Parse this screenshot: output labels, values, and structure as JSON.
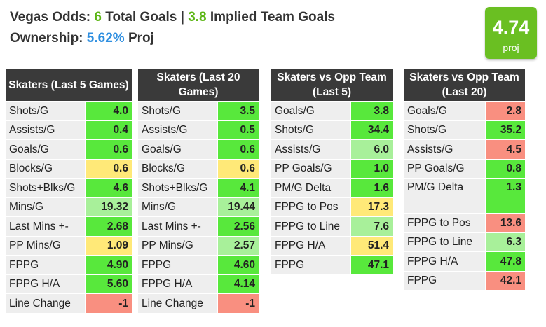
{
  "header": {
    "odds_label": "Vegas Odds:",
    "total_goals_value": "6",
    "total_goals_label": "Total Goals",
    "separator": "|",
    "implied_value": "3.8",
    "implied_label": "Implied Team Goals",
    "ownership_label": "Ownership:",
    "ownership_value": "5.62%",
    "ownership_suffix": "Proj"
  },
  "projection": {
    "value": "4.74",
    "label": "proj",
    "color": "#6abf22"
  },
  "colors": {
    "green": "#58e83c",
    "light_green": "#a8f09a",
    "yellow": "#ffe978",
    "red": "#f98f80",
    "header": "#3a3a3a"
  },
  "tables": [
    {
      "title": "Skaters (Last 5 Games)",
      "rows": [
        {
          "label": "Shots/G",
          "value": "4.0",
          "color": "green"
        },
        {
          "label": "Assists/G",
          "value": "0.4",
          "color": "green"
        },
        {
          "label": "Goals/G",
          "value": "0.6",
          "color": "green"
        },
        {
          "label": "Blocks/G",
          "value": "0.6",
          "color": "yellow"
        },
        {
          "label": "Shots+Blks/G",
          "value": "4.6",
          "color": "green"
        },
        {
          "label": "Mins/G",
          "value": "19.32",
          "color": "light_green"
        },
        {
          "label": "Last Mins +-",
          "value": "2.68",
          "color": "green"
        },
        {
          "label": "PP Mins/G",
          "value": "1.09",
          "color": "yellow"
        },
        {
          "label": "FPPG",
          "value": "4.90",
          "color": "green"
        },
        {
          "label": "FPPG H/A",
          "value": "5.60",
          "color": "green"
        },
        {
          "label": "Line Change",
          "value": "-1",
          "color": "red"
        }
      ]
    },
    {
      "title": "Skaters (Last 20 Games)",
      "rows": [
        {
          "label": "Shots/G",
          "value": "3.5",
          "color": "green"
        },
        {
          "label": "Assists/G",
          "value": "0.5",
          "color": "green"
        },
        {
          "label": "Goals/G",
          "value": "0.6",
          "color": "green"
        },
        {
          "label": "Blocks/G",
          "value": "0.6",
          "color": "yellow"
        },
        {
          "label": "Shots+Blks/G",
          "value": "4.1",
          "color": "green"
        },
        {
          "label": "Mins/G",
          "value": "19.44",
          "color": "light_green"
        },
        {
          "label": "Last Mins +-",
          "value": "2.56",
          "color": "green"
        },
        {
          "label": "PP Mins/G",
          "value": "2.57",
          "color": "light_green"
        },
        {
          "label": "FPPG",
          "value": "4.60",
          "color": "green"
        },
        {
          "label": "FPPG H/A",
          "value": "4.14",
          "color": "green"
        },
        {
          "label": "Line Change",
          "value": "-1",
          "color": "red"
        }
      ]
    },
    {
      "title": "Skaters vs Opp Team (Last 5)",
      "rows": [
        {
          "label": "Goals/G",
          "value": "3.8",
          "color": "green"
        },
        {
          "label": "Shots/G",
          "value": "34.4",
          "color": "green"
        },
        {
          "label": "Assists/G",
          "value": "6.0",
          "color": "light_green"
        },
        {
          "label": "PP Goals/G",
          "value": "1.0",
          "color": "green"
        },
        {
          "label": "PM/G Delta",
          "value": "1.6",
          "color": "green"
        },
        {
          "label": "FPPG to Pos",
          "value": "17.3",
          "color": "yellow"
        },
        {
          "label": "FPPG to Line",
          "value": "7.6",
          "color": "light_green"
        },
        {
          "label": "FPPG H/A",
          "value": "51.4",
          "color": "yellow"
        },
        {
          "label": "FPPG",
          "value": "47.1",
          "color": "green"
        }
      ]
    },
    {
      "title": "Skaters vs Opp Team (Last 20)",
      "rows": [
        {
          "label": "Goals/G",
          "value": "2.8",
          "color": "red"
        },
        {
          "label": "Shots/G",
          "value": "35.2",
          "color": "green"
        },
        {
          "label": "Assists/G",
          "value": "4.5",
          "color": "red"
        },
        {
          "label": "PP Goals/G",
          "value": "0.8",
          "color": "green"
        },
        {
          "label": "PM/G Delta",
          "value": "1.3",
          "color": "green"
        },
        {
          "label": "FPPG to Pos",
          "value": "13.6",
          "color": "red"
        },
        {
          "label": "FPPG to Line",
          "value": "6.3",
          "color": "light_green"
        },
        {
          "label": "FPPG H/A",
          "value": "47.8",
          "color": "green"
        },
        {
          "label": "FPPG",
          "value": "42.1",
          "color": "red"
        }
      ]
    }
  ]
}
